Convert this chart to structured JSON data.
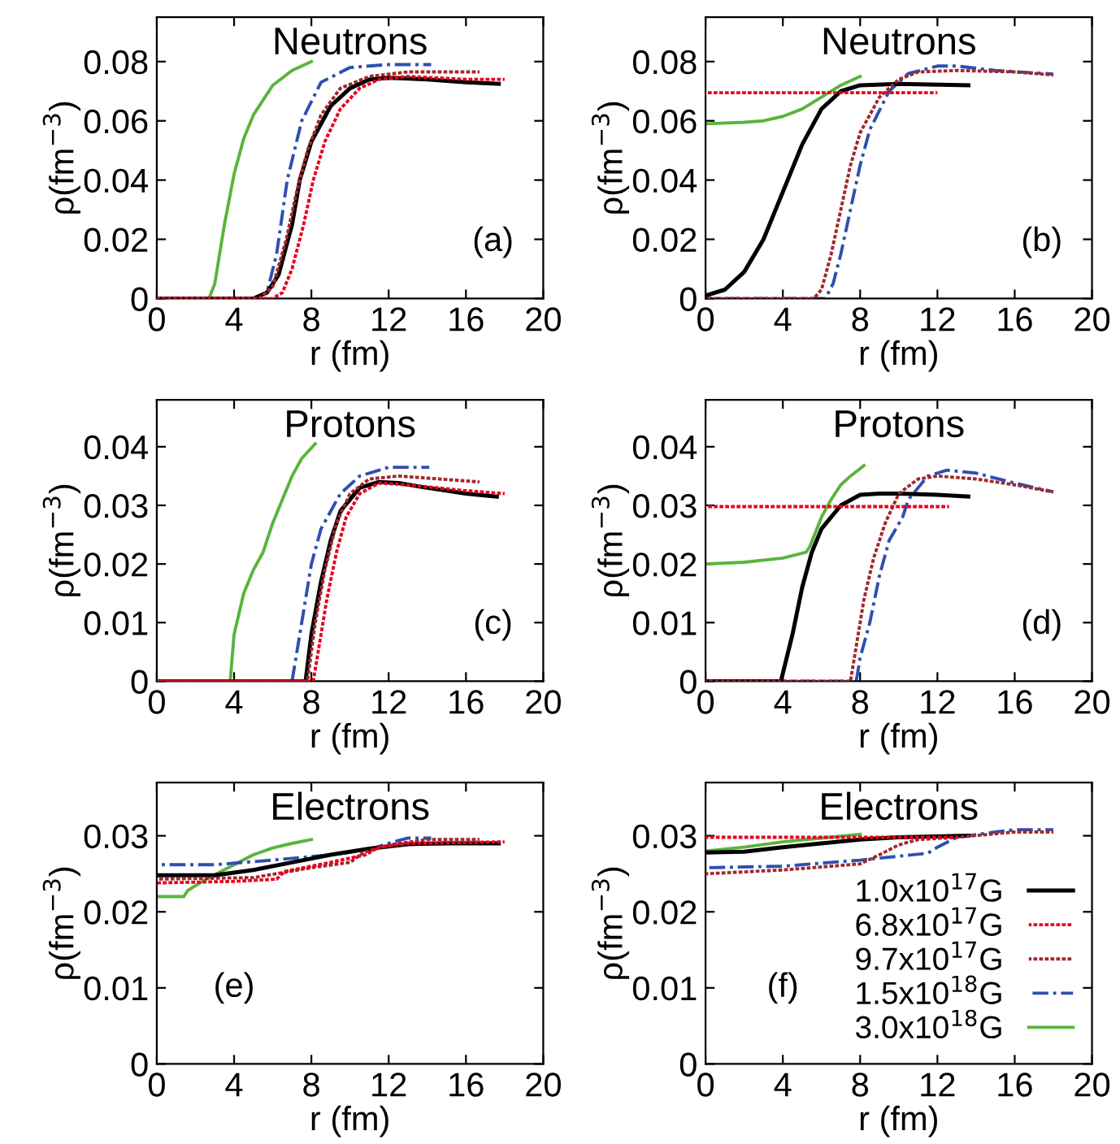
{
  "chart_data": [
    {
      "type": "line",
      "title": "Neutrons",
      "xlabel": "r (fm)",
      "ylabel": "ρ(fm$^{−3}$)",
      "annotations": [
        "(a)"
      ],
      "xlim": [
        0,
        20
      ],
      "xticks": [
        0,
        4,
        8,
        12,
        16,
        20
      ],
      "ylim": [
        0,
        0.095
      ],
      "yticks": [
        0,
        0.02,
        0.04,
        0.06,
        0.08
      ],
      "grid": false,
      "legend": false,
      "series": [
        {
          "color": "#000000",
          "line_style": "solid",
          "x": [
            0,
            5,
            5.7,
            6.3,
            7,
            7.4,
            8,
            9,
            10,
            11,
            12,
            14,
            16,
            17.7
          ],
          "values": [
            0,
            0,
            0.002,
            0.008,
            0.025,
            0.04,
            0.053,
            0.065,
            0.071,
            0.074,
            0.0745,
            0.074,
            0.073,
            0.0725
          ]
        },
        {
          "color": "#e8001c",
          "line_style": "dotted",
          "x": [
            0,
            6,
            6.5,
            7,
            7.6,
            8.1,
            8.7,
            9.5,
            10.5,
            11.5,
            13,
            16,
            18
          ],
          "values": [
            0,
            0,
            0.002,
            0.01,
            0.025,
            0.04,
            0.053,
            0.064,
            0.071,
            0.074,
            0.075,
            0.074,
            0.074
          ]
        },
        {
          "color": "#a0282d",
          "line_style": "dotted",
          "x": [
            0,
            5.3,
            6,
            6.7,
            7.2,
            7.8,
            8.5,
            9.5,
            11,
            13,
            16.7
          ],
          "values": [
            0,
            0,
            0.004,
            0.02,
            0.035,
            0.05,
            0.062,
            0.071,
            0.075,
            0.0765,
            0.0765
          ]
        },
        {
          "color": "#2f4fb0",
          "line_style": "dashed",
          "x": [
            0,
            5,
            5.7,
            6.2,
            6.75,
            7.5,
            8.5,
            10,
            12,
            14.2
          ],
          "values": [
            0,
            0,
            0.002,
            0.015,
            0.04,
            0.06,
            0.073,
            0.078,
            0.079,
            0.079
          ]
        },
        {
          "color": "#5ab43c",
          "line_style": "solid",
          "x": [
            0,
            2.7,
            3,
            3.5,
            4,
            4.5,
            5,
            6,
            7,
            8
          ],
          "values": [
            0,
            0,
            0.005,
            0.025,
            0.042,
            0.054,
            0.062,
            0.072,
            0.077,
            0.08
          ]
        }
      ]
    },
    {
      "type": "line",
      "title": "Neutrons",
      "xlabel": "r (fm)",
      "ylabel": "ρ(fm$^{−3}$)",
      "annotations": [
        "(b)"
      ],
      "xlim": [
        0,
        20
      ],
      "xticks": [
        0,
        4,
        8,
        12,
        16,
        20
      ],
      "ylim": [
        0,
        0.095
      ],
      "yticks": [
        0,
        0.02,
        0.04,
        0.06,
        0.08
      ],
      "grid": false,
      "legend": false,
      "series": [
        {
          "color": "#000000",
          "line_style": "solid",
          "x": [
            0,
            1,
            2,
            3,
            4,
            5,
            6,
            7,
            8,
            10,
            13.6
          ],
          "values": [
            0.001,
            0.003,
            0.009,
            0.02,
            0.036,
            0.052,
            0.064,
            0.07,
            0.072,
            0.0725,
            0.072
          ]
        },
        {
          "color": "#e8001c",
          "line_style": "dotted",
          "x": [
            0,
            4,
            8,
            12
          ],
          "values": [
            0.0695,
            0.0695,
            0.0695,
            0.0695
          ]
        },
        {
          "color": "#a0282d",
          "line_style": "dotted",
          "x": [
            0,
            5.6,
            6,
            6.5,
            7,
            7.5,
            8,
            9,
            10,
            11,
            13,
            16,
            18
          ],
          "values": [
            0,
            0,
            0.003,
            0.015,
            0.03,
            0.045,
            0.056,
            0.068,
            0.074,
            0.0765,
            0.077,
            0.0765,
            0.0755
          ]
        },
        {
          "color": "#2f4fb0",
          "line_style": "dashed",
          "x": [
            0,
            6.2,
            6.6,
            7,
            7.5,
            8,
            8.5,
            9.5,
            10.5,
            12,
            13,
            15,
            18
          ],
          "values": [
            0,
            0,
            0.005,
            0.015,
            0.03,
            0.045,
            0.057,
            0.07,
            0.076,
            0.0785,
            0.0785,
            0.077,
            0.0758
          ]
        },
        {
          "color": "#5ab43c",
          "line_style": "solid",
          "x": [
            0,
            2,
            3,
            4,
            5,
            6,
            7,
            8
          ],
          "values": [
            0.059,
            0.0595,
            0.06,
            0.0615,
            0.064,
            0.068,
            0.072,
            0.075
          ]
        }
      ]
    },
    {
      "type": "line",
      "title": "Protons",
      "xlabel": "r (fm)",
      "ylabel": "ρ(fm$^{−3}$)",
      "annotations": [
        "(c)"
      ],
      "xlim": [
        0,
        20
      ],
      "xticks": [
        0,
        4,
        8,
        12,
        16,
        20
      ],
      "ylim": [
        0,
        0.048
      ],
      "yticks": [
        0,
        0.01,
        0.02,
        0.03,
        0.04
      ],
      "grid": false,
      "legend": false,
      "series": [
        {
          "color": "#000000",
          "line_style": "solid",
          "x": [
            0,
            7.7,
            8,
            8.5,
            9,
            9.5,
            10.5,
            11.5,
            12.5,
            14,
            16,
            17.6
          ],
          "values": [
            0,
            0,
            0.008,
            0.017,
            0.024,
            0.029,
            0.033,
            0.034,
            0.0338,
            0.033,
            0.032,
            0.0315
          ]
        },
        {
          "color": "#e8001c",
          "line_style": "dotted",
          "x": [
            0,
            8.1,
            8.4,
            8.8,
            9.3,
            9.8,
            10.5,
            11.5,
            13,
            16,
            18
          ],
          "values": [
            0,
            0,
            0.006,
            0.014,
            0.022,
            0.028,
            0.032,
            0.0338,
            0.0335,
            0.0325,
            0.032
          ]
        },
        {
          "color": "#a0282d",
          "line_style": "dotted",
          "x": [
            0,
            7.8,
            8.2,
            8.7,
            9.3,
            10,
            11,
            12.5,
            16.7
          ],
          "values": [
            0,
            0,
            0.01,
            0.019,
            0.027,
            0.032,
            0.0345,
            0.035,
            0.034
          ]
        },
        {
          "color": "#2f4fb0",
          "line_style": "dashed",
          "x": [
            0,
            7,
            7.3,
            7.6,
            8,
            8.5,
            9,
            9.5,
            10.5,
            12,
            14.1
          ],
          "values": [
            0,
            0,
            0.006,
            0.012,
            0.02,
            0.026,
            0.029,
            0.032,
            0.035,
            0.0365,
            0.0365
          ]
        },
        {
          "color": "#5ab43c",
          "line_style": "solid",
          "x": [
            0,
            3.8,
            4,
            4.5,
            5,
            5.5,
            6,
            6.5,
            7,
            7.5,
            8.2
          ],
          "values": [
            0,
            0,
            0.008,
            0.015,
            0.019,
            0.022,
            0.027,
            0.031,
            0.035,
            0.038,
            0.0405
          ]
        }
      ]
    },
    {
      "type": "line",
      "title": "Protons",
      "xlabel": "r (fm)",
      "ylabel": "ρ(fm$^{−3}$)",
      "annotations": [
        "(d)"
      ],
      "xlim": [
        0,
        20
      ],
      "xticks": [
        0,
        4,
        8,
        12,
        16,
        20
      ],
      "ylim": [
        0,
        0.048
      ],
      "yticks": [
        0,
        0.01,
        0.02,
        0.03,
        0.04
      ],
      "grid": false,
      "legend": false,
      "series": [
        {
          "color": "#000000",
          "line_style": "solid",
          "x": [
            0,
            3.9,
            4.5,
            5,
            5.5,
            6,
            7,
            8,
            9,
            10,
            12,
            13.6
          ],
          "values": [
            0,
            0,
            0.008,
            0.016,
            0.022,
            0.026,
            0.03,
            0.0318,
            0.032,
            0.032,
            0.0318,
            0.0315
          ]
        },
        {
          "color": "#e8001c",
          "line_style": "dotted",
          "x": [
            0,
            4,
            8,
            12.6
          ],
          "values": [
            0.0298,
            0.0298,
            0.0298,
            0.0298
          ]
        },
        {
          "color": "#a0282d",
          "line_style": "dotted",
          "x": [
            0,
            7.5,
            7.8,
            8.2,
            8.7,
            9.3,
            10,
            11,
            12,
            14,
            16,
            18
          ],
          "values": [
            0,
            0,
            0.006,
            0.014,
            0.021,
            0.027,
            0.032,
            0.0345,
            0.035,
            0.0345,
            0.0335,
            0.0323
          ]
        },
        {
          "color": "#2f4fb0",
          "line_style": "dashed",
          "x": [
            0,
            7.8,
            8,
            8.5,
            9,
            9.5,
            10.2,
            10.5,
            11.5,
            12.5,
            14,
            16,
            18
          ],
          "values": [
            0,
            0,
            0.004,
            0.01,
            0.018,
            0.024,
            0.028,
            0.031,
            0.035,
            0.036,
            0.0355,
            0.0338,
            0.0323
          ]
        },
        {
          "color": "#5ab43c",
          "line_style": "solid",
          "x": [
            0,
            2,
            4,
            5.2,
            5.4,
            6,
            6.5,
            7,
            7.5,
            8.2
          ],
          "values": [
            0.02,
            0.0203,
            0.021,
            0.022,
            0.023,
            0.028,
            0.031,
            0.0335,
            0.035,
            0.0368
          ]
        }
      ]
    },
    {
      "type": "line",
      "title": "Electrons",
      "xlabel": "r (fm)",
      "ylabel": "ρ(fm$^{−3}$)",
      "annotations": [
        "(e)"
      ],
      "xlim": [
        0,
        20
      ],
      "xticks": [
        0,
        4,
        8,
        12,
        16,
        20
      ],
      "ylim": [
        0,
        0.037
      ],
      "yticks": [
        0,
        0.01,
        0.02,
        0.03
      ],
      "grid": false,
      "legend": false,
      "series": [
        {
          "color": "#000000",
          "line_style": "solid",
          "x": [
            0,
            3,
            5,
            7,
            9,
            11,
            13,
            15,
            17.7
          ],
          "values": [
            0.0248,
            0.0248,
            0.0255,
            0.0265,
            0.0275,
            0.0283,
            0.0289,
            0.029,
            0.029
          ]
        },
        {
          "color": "#e8001c",
          "line_style": "dotted",
          "x": [
            0,
            4,
            6.2,
            6.6,
            9,
            10.8,
            11.5,
            13,
            18
          ],
          "values": [
            0.0238,
            0.024,
            0.0243,
            0.0253,
            0.0265,
            0.0275,
            0.0285,
            0.029,
            0.0292
          ]
        },
        {
          "color": "#a0282d",
          "line_style": "dotted",
          "x": [
            0,
            5,
            8,
            10,
            10.7,
            12,
            14,
            16.7
          ],
          "values": [
            0.0243,
            0.0245,
            0.0258,
            0.0265,
            0.0278,
            0.0288,
            0.0295,
            0.0295
          ]
        },
        {
          "color": "#2f4fb0",
          "line_style": "dashed",
          "x": [
            0,
            3,
            6,
            9,
            11,
            12,
            13,
            14.2
          ],
          "values": [
            0.0262,
            0.0262,
            0.0268,
            0.0275,
            0.0282,
            0.029,
            0.0297,
            0.0297
          ]
        },
        {
          "color": "#5ab43c",
          "line_style": "solid",
          "x": [
            0,
            1.4,
            1.6,
            2.5,
            4,
            5,
            6,
            7,
            8
          ],
          "values": [
            0.022,
            0.022,
            0.0228,
            0.0242,
            0.0262,
            0.0275,
            0.0284,
            0.029,
            0.0295
          ]
        }
      ]
    },
    {
      "type": "line",
      "title": "Electrons",
      "xlabel": "r (fm)",
      "ylabel": "ρ(fm$^{−3}$)",
      "annotations": [
        "(f)"
      ],
      "xlim": [
        0,
        20
      ],
      "xticks": [
        0,
        4,
        8,
        12,
        16,
        20
      ],
      "ylim": [
        0,
        0.037
      ],
      "yticks": [
        0,
        0.01,
        0.02,
        0.03
      ],
      "grid": false,
      "legend": "lower right",
      "series": [
        {
          "name": "1.0x10$^{17}$G",
          "color": "#000000",
          "line_style": "solid",
          "x": [
            0,
            2,
            4,
            6,
            8,
            10,
            13.6
          ],
          "values": [
            0.0278,
            0.0279,
            0.0285,
            0.029,
            0.0295,
            0.0298,
            0.03
          ]
        },
        {
          "name": "6.8x10$^{17}$G",
          "color": "#e8001c",
          "line_style": "dotted",
          "x": [
            0,
            4,
            8,
            13
          ],
          "values": [
            0.0298,
            0.0298,
            0.0298,
            0.0298
          ]
        },
        {
          "name": "9.7x10$^{17}$G",
          "color": "#a0282d",
          "line_style": "dotted",
          "x": [
            0,
            4,
            8,
            9,
            10,
            11,
            13,
            16,
            18
          ],
          "values": [
            0.025,
            0.0255,
            0.0263,
            0.0275,
            0.0288,
            0.0295,
            0.0298,
            0.0305,
            0.0305
          ]
        },
        {
          "name": "1.5x10$^{18}$G",
          "color": "#2f4fb0",
          "line_style": "dashed",
          "x": [
            0,
            4,
            8,
            11.5,
            12,
            13,
            15,
            16,
            18
          ],
          "values": [
            0.0258,
            0.026,
            0.0268,
            0.0277,
            0.0285,
            0.0298,
            0.0305,
            0.0308,
            0.0308
          ]
        },
        {
          "name": "3.0x10$^{18}$G",
          "color": "#5ab43c",
          "line_style": "solid",
          "x": [
            0,
            2,
            4,
            6,
            8
          ],
          "values": [
            0.028,
            0.0285,
            0.0292,
            0.0297,
            0.0302
          ]
        }
      ]
    }
  ]
}
